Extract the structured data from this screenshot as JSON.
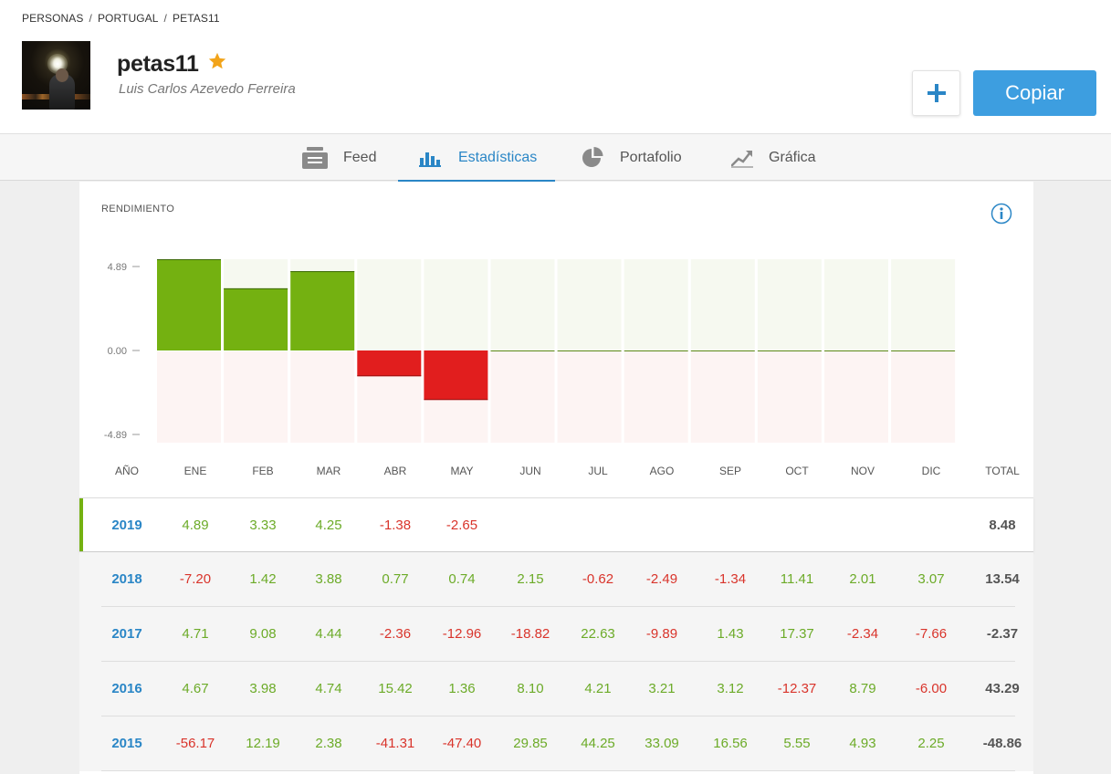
{
  "breadcrumb": [
    "PERSONAS",
    "PORTUGAL",
    "PETAS11"
  ],
  "breadcrumb_sep": "/",
  "profile": {
    "username": "petas11",
    "fullname": "Luis Carlos Azevedo Ferreira",
    "star_color": "#f2a41a"
  },
  "actions": {
    "add_icon": "plus-icon",
    "copy_label": "Copiar",
    "copy_color": "#3d9ee0"
  },
  "tabs": [
    {
      "label": "Feed",
      "icon": "feed-icon",
      "active": false
    },
    {
      "label": "Estadísticas",
      "icon": "bar-chart-icon",
      "active": true
    },
    {
      "label": "Portafolio",
      "icon": "pie-chart-icon",
      "active": false
    },
    {
      "label": "Gráfica",
      "icon": "trend-chart-icon",
      "active": false
    }
  ],
  "performance": {
    "title": "RENDIMIENTO",
    "info_icon": "info-icon",
    "columns": [
      "AÑO",
      "ENE",
      "FEB",
      "MAR",
      "ABR",
      "MAY",
      "JUN",
      "JUL",
      "AGO",
      "SEP",
      "OCT",
      "NOV",
      "DIC",
      "TOTAL"
    ],
    "rows": [
      {
        "year": "2019",
        "months": [
          "4.89",
          "3.33",
          "4.25",
          "-1.38",
          "-2.65",
          "",
          "",
          "",
          "",
          "",
          "",
          ""
        ],
        "total": "8.48"
      },
      {
        "year": "2018",
        "months": [
          "-7.20",
          "1.42",
          "3.88",
          "0.77",
          "0.74",
          "2.15",
          "-0.62",
          "-2.49",
          "-1.34",
          "11.41",
          "2.01",
          "3.07"
        ],
        "total": "13.54"
      },
      {
        "year": "2017",
        "months": [
          "4.71",
          "9.08",
          "4.44",
          "-2.36",
          "-12.96",
          "-18.82",
          "22.63",
          "-9.89",
          "1.43",
          "17.37",
          "-2.34",
          "-7.66"
        ],
        "total": "-2.37"
      },
      {
        "year": "2016",
        "months": [
          "4.67",
          "3.98",
          "4.74",
          "15.42",
          "1.36",
          "8.10",
          "4.21",
          "3.21",
          "3.12",
          "-12.37",
          "8.79",
          "-6.00"
        ],
        "total": "43.29"
      },
      {
        "year": "2015",
        "months": [
          "-56.17",
          "12.19",
          "2.38",
          "-41.31",
          "-47.40",
          "29.85",
          "44.25",
          "33.09",
          "16.56",
          "5.55",
          "4.93",
          "2.25"
        ],
        "total": "-48.86"
      }
    ]
  },
  "chart_data": {
    "type": "bar",
    "categories": [
      "ENE",
      "FEB",
      "MAR",
      "ABR",
      "MAY",
      "JUN",
      "JUL",
      "AGO",
      "SEP",
      "OCT",
      "NOV",
      "DIC"
    ],
    "values": [
      4.89,
      3.33,
      4.25,
      -1.38,
      -2.65,
      0,
      0,
      0,
      0,
      0,
      0,
      0
    ],
    "yticks": [
      "4.89",
      "0.00",
      "-4.89"
    ],
    "ylim": [
      -4.89,
      4.89
    ],
    "positive_color": "#74b111",
    "negative_color": "#e11e1e",
    "positive_bg": "#f6f9f0",
    "negative_bg": "#fdf4f3"
  }
}
